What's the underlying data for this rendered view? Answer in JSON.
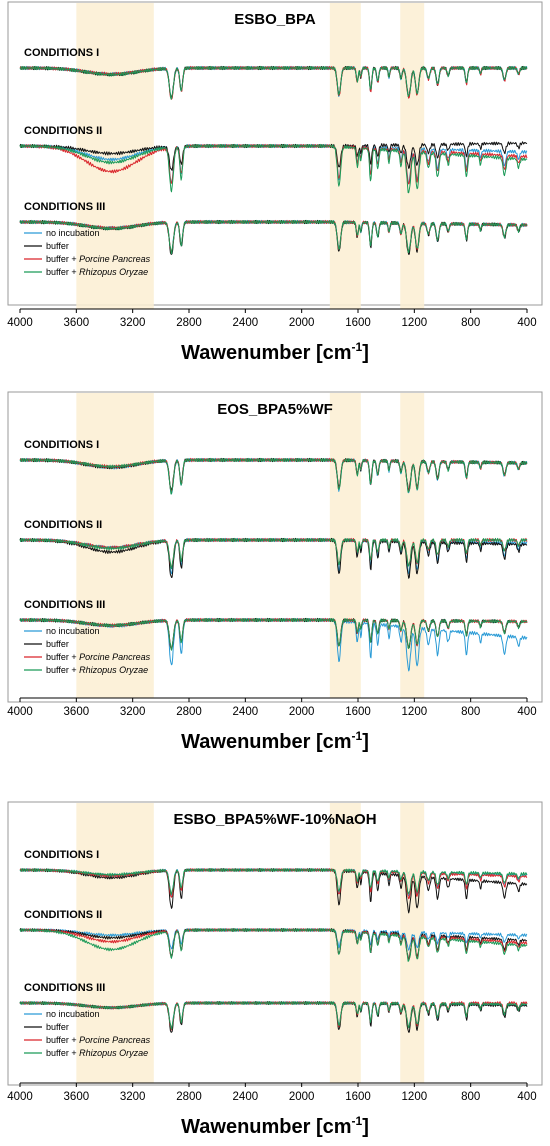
{
  "chart_data": [
    {
      "type": "line",
      "title": "ESBO_BPA",
      "xlabel": "Wawenumber [cm",
      "xlabel_sup": "-1",
      "xlabel_end": "]",
      "xlim": [
        4000,
        400
      ],
      "xticks": [
        "4000",
        "3600",
        "3200",
        "2800",
        "2400",
        "2000",
        "1600",
        "1200",
        "800",
        "400"
      ],
      "shaded_regions": [
        [
          3600,
          3050
        ],
        [
          1800,
          1580
        ],
        [
          1300,
          1130
        ]
      ],
      "legend": {
        "placement": "bottom-left",
        "entries": [
          {
            "plain": "no incubation",
            "italic": "",
            "color": "#2a9bd6"
          },
          {
            "plain": "buffer",
            "italic": "",
            "color": "#111111"
          },
          {
            "plain": "buffer + ",
            "italic": "Porcine Pancreas",
            "color": "#d9252b"
          },
          {
            "plain": "buffer + ",
            "italic": "Rhizopus Oryzae",
            "color": "#1b9a58"
          }
        ]
      },
      "groups": [
        {
          "label": "CONDITIONS I",
          "series": [
            {
              "name": "no incubation",
              "baseline": 0.0,
              "depth": 1.0,
              "oh": 0.2,
              "slope": 0.0
            },
            {
              "name": "buffer",
              "baseline": 0.0,
              "depth": 1.0,
              "oh": 0.22,
              "slope": 0.0
            },
            {
              "name": "buffer + Porcine Pancreas",
              "baseline": 0.0,
              "depth": 1.05,
              "oh": 0.2,
              "slope": 0.0
            },
            {
              "name": "buffer + Rhizopus Oryzae",
              "baseline": 0.0,
              "depth": 1.0,
              "oh": 0.22,
              "slope": 0.0
            }
          ]
        },
        {
          "label": "CONDITIONS II",
          "series": [
            {
              "name": "no incubation",
              "baseline": 0.0,
              "depth": 1.2,
              "oh": 0.45,
              "slope": 0.2
            },
            {
              "name": "buffer",
              "baseline": 0.0,
              "depth": 0.8,
              "oh": 0.25,
              "slope": -0.1
            },
            {
              "name": "buffer + Porcine Pancreas",
              "baseline": 0.0,
              "depth": 1.2,
              "oh": 0.85,
              "slope": 0.35
            },
            {
              "name": "buffer + Rhizopus Oryzae",
              "baseline": 0.0,
              "depth": 1.45,
              "oh": 0.55,
              "slope": 0.45
            }
          ]
        },
        {
          "label": "CONDITIONS III",
          "series": [
            {
              "name": "no incubation",
              "baseline": 0.0,
              "depth": 1.0,
              "oh": 0.2,
              "slope": 0.1
            },
            {
              "name": "buffer",
              "baseline": 0.0,
              "depth": 1.1,
              "oh": 0.22,
              "slope": 0.1
            },
            {
              "name": "buffer + Porcine Pancreas",
              "baseline": 0.0,
              "depth": 1.0,
              "oh": 0.2,
              "slope": 0.1
            },
            {
              "name": "buffer + Rhizopus Oryzae",
              "baseline": 0.0,
              "depth": 1.0,
              "oh": 0.22,
              "slope": 0.1
            }
          ]
        }
      ]
    },
    {
      "type": "line",
      "title": "EOS_BPA5%WF",
      "xlabel": "Wawenumber [cm",
      "xlabel_sup": "-1",
      "xlabel_end": "]",
      "xlim": [
        4000,
        400
      ],
      "xticks": [
        "4000",
        "3600",
        "3200",
        "2800",
        "2400",
        "2000",
        "1600",
        "1200",
        "800",
        "400"
      ],
      "shaded_regions": [
        [
          3600,
          3050
        ],
        [
          1800,
          1580
        ],
        [
          1300,
          1130
        ]
      ],
      "legend": {
        "placement": "bottom-left",
        "entries": [
          {
            "plain": "no incubation",
            "italic": "",
            "color": "#2a9bd6"
          },
          {
            "plain": "buffer",
            "italic": "",
            "color": "#111111"
          },
          {
            "plain": "buffer + ",
            "italic": "Porcine Pancreas",
            "color": "#d9252b"
          },
          {
            "plain": "buffer + ",
            "italic": "Rhizopus Oryzae",
            "color": "#1b9a58"
          }
        ]
      },
      "groups": [
        {
          "label": "CONDITIONS I",
          "series": [
            {
              "name": "no incubation",
              "baseline": 0.0,
              "depth": 1.1,
              "oh": 0.25,
              "slope": 0.1
            },
            {
              "name": "buffer",
              "baseline": 0.0,
              "depth": 1.0,
              "oh": 0.25,
              "slope": 0.1
            },
            {
              "name": "buffer + Porcine Pancreas",
              "baseline": 0.0,
              "depth": 1.05,
              "oh": 0.22,
              "slope": 0.1
            },
            {
              "name": "buffer + Rhizopus Oryzae",
              "baseline": 0.0,
              "depth": 1.1,
              "oh": 0.22,
              "slope": 0.1
            }
          ]
        },
        {
          "label": "CONDITIONS II",
          "series": [
            {
              "name": "no incubation",
              "baseline": 0.0,
              "depth": 1.1,
              "oh": 0.25,
              "slope": 0.1
            },
            {
              "name": "buffer",
              "baseline": 0.0,
              "depth": 1.25,
              "oh": 0.4,
              "slope": 0.15
            },
            {
              "name": "buffer + Porcine Pancreas",
              "baseline": 0.0,
              "depth": 0.9,
              "oh": 0.25,
              "slope": 0.0
            },
            {
              "name": "buffer + Rhizopus Oryzae",
              "baseline": 0.0,
              "depth": 0.9,
              "oh": 0.28,
              "slope": 0.0
            }
          ]
        },
        {
          "label": "CONDITIONS III",
          "series": [
            {
              "name": "no incubation",
              "baseline": 0.0,
              "depth": 1.5,
              "oh": 0.2,
              "slope": 0.6
            },
            {
              "name": "buffer",
              "baseline": 0.0,
              "depth": 0.95,
              "oh": 0.18,
              "slope": 0.05
            },
            {
              "name": "buffer + Porcine Pancreas",
              "baseline": 0.0,
              "depth": 0.95,
              "oh": 0.18,
              "slope": 0.05
            },
            {
              "name": "buffer + Rhizopus Oryzae",
              "baseline": 0.0,
              "depth": 0.95,
              "oh": 0.18,
              "slope": 0.05
            }
          ]
        }
      ]
    },
    {
      "type": "line",
      "title": "ESBO_BPA5%WF-10%NaOH",
      "xlabel": "Wawenumber [cm",
      "xlabel_sup": "-1",
      "xlabel_end": "]",
      "xlim": [
        4000,
        400
      ],
      "xticks": [
        "4000",
        "3600",
        "3200",
        "2800",
        "2400",
        "2000",
        "1600",
        "1200",
        "800",
        "400"
      ],
      "shaded_regions": [
        [
          3600,
          3050
        ],
        [
          1800,
          1580
        ],
        [
          1300,
          1130
        ]
      ],
      "legend": {
        "placement": "bottom-left",
        "entries": [
          {
            "plain": "no incubation",
            "italic": "",
            "color": "#2a9bd6"
          },
          {
            "plain": "buffer",
            "italic": "",
            "color": "#111111"
          },
          {
            "plain": "buffer + ",
            "italic": "Porcine Pancreas",
            "color": "#d9252b"
          },
          {
            "plain": "buffer + ",
            "italic": "Rhizopus Oryzae",
            "color": "#1b9a58"
          }
        ]
      },
      "groups": [
        {
          "label": "CONDITIONS I",
          "series": [
            {
              "name": "no incubation",
              "baseline": 0.0,
              "depth": 0.95,
              "oh": 0.2,
              "slope": 0.2
            },
            {
              "name": "buffer",
              "baseline": 0.0,
              "depth": 1.45,
              "oh": 0.3,
              "slope": 0.55
            },
            {
              "name": "buffer + Porcine Pancreas",
              "baseline": 0.0,
              "depth": 1.05,
              "oh": 0.22,
              "slope": 0.25
            },
            {
              "name": "buffer + Rhizopus Oryzae",
              "baseline": 0.0,
              "depth": 0.9,
              "oh": 0.18,
              "slope": 0.15
            }
          ]
        },
        {
          "label": "CONDITIONS II",
          "series": [
            {
              "name": "no incubation",
              "baseline": 0.0,
              "depth": 0.7,
              "oh": 0.2,
              "slope": 0.2
            },
            {
              "name": "buffer",
              "baseline": 0.0,
              "depth": 1.0,
              "oh": 0.3,
              "slope": 0.4
            },
            {
              "name": "buffer + Porcine Pancreas",
              "baseline": 0.0,
              "depth": 1.0,
              "oh": 0.45,
              "slope": 0.5
            },
            {
              "name": "buffer + Rhizopus Oryzae",
              "baseline": 0.0,
              "depth": 1.0,
              "oh": 0.75,
              "slope": 0.6
            }
          ]
        },
        {
          "label": "CONDITIONS III",
          "series": [
            {
              "name": "no incubation",
              "baseline": 0.0,
              "depth": 0.95,
              "oh": 0.18,
              "slope": 0.05
            },
            {
              "name": "buffer",
              "baseline": 0.0,
              "depth": 1.15,
              "oh": 0.18,
              "slope": 0.1
            },
            {
              "name": "buffer + Porcine Pancreas",
              "baseline": 0.0,
              "depth": 1.0,
              "oh": 0.18,
              "slope": 0.0
            },
            {
              "name": "buffer + Rhizopus Oryzae",
              "baseline": 0.0,
              "depth": 0.95,
              "oh": 0.18,
              "slope": 0.05
            }
          ]
        }
      ]
    }
  ]
}
